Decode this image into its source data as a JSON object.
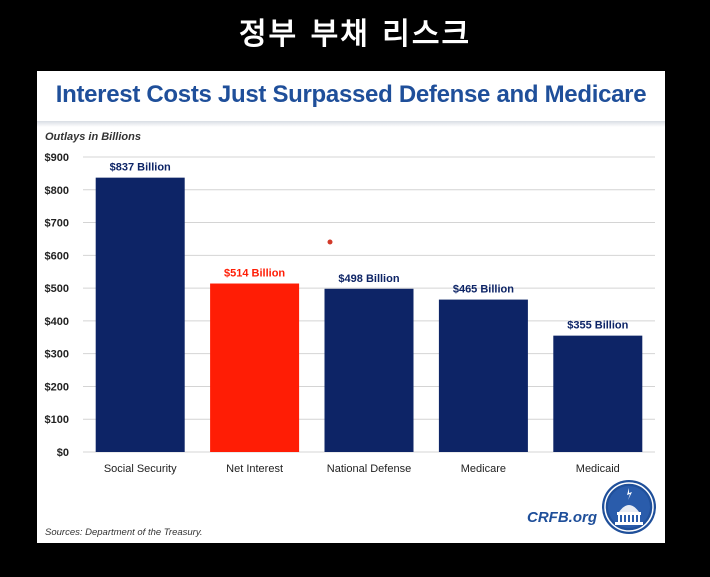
{
  "banner": {
    "text": "정부 부채 리스크"
  },
  "slide": {
    "title": "Interest Costs Just Surpassed Defense and Medicare",
    "subtitle": "Outlays in Billions",
    "source": "Sources: Department of the Treasury.",
    "brand": "CRFB.org"
  },
  "colors": {
    "bar": "#0d2466",
    "highlight": "#ff1d05",
    "label": "#0d2466",
    "title": "#1f4f9a"
  },
  "chart_data": {
    "type": "bar",
    "title": "Interest Costs Just Surpassed Defense and Medicare",
    "ylabel": "Outlays in Billions",
    "categories": [
      "Social Security",
      "Net Interest",
      "National Defense",
      "Medicare",
      "Medicaid"
    ],
    "values": [
      837,
      514,
      498,
      465,
      355
    ],
    "data_labels": [
      "$837 Billion",
      "$514 Billion",
      "$498 Billion",
      "$465 Billion",
      "$355 Billion"
    ],
    "highlight_index": 1,
    "ylim": [
      0,
      900
    ],
    "yticks": [
      0,
      100,
      200,
      300,
      400,
      500,
      600,
      700,
      800,
      900
    ],
    "ytick_labels": [
      "$0",
      "$100",
      "$200",
      "$300",
      "$400",
      "$500",
      "$600",
      "$700",
      "$800",
      "$900"
    ],
    "grid": true
  }
}
